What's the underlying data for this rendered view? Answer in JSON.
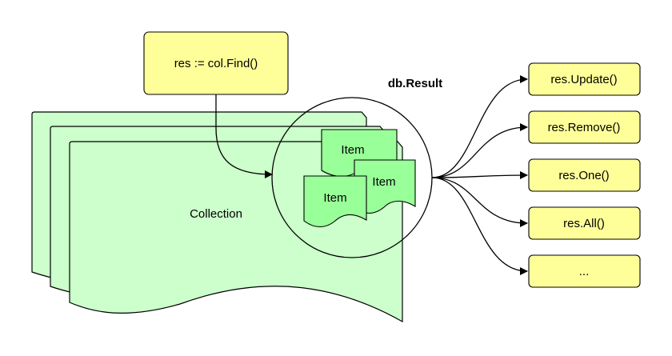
{
  "diagram": {
    "query": {
      "label": "res := col.Find()"
    },
    "result": {
      "label": "db.Result"
    },
    "collection": {
      "label": "Collection"
    },
    "items": [
      {
        "label": "Item"
      },
      {
        "label": "Item"
      },
      {
        "label": "Item"
      }
    ],
    "methods": [
      {
        "label": "res.Update()"
      },
      {
        "label": "res.Remove()"
      },
      {
        "label": "res.One()"
      },
      {
        "label": "res.All()"
      },
      {
        "label": "..."
      }
    ]
  },
  "colors": {
    "query_fill": "#ffff99",
    "method_fill": "#ffff99",
    "collection_fill": "#ccffcc",
    "item_fill": "#99ff99",
    "stroke": "#000000"
  }
}
